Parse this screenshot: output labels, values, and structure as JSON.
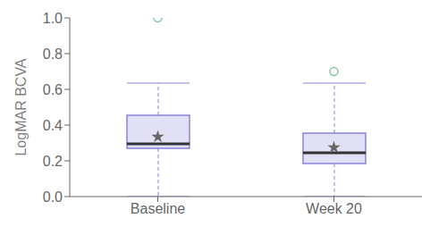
{
  "chart_data": {
    "type": "box",
    "categories": [
      "Baseline",
      "Week 20"
    ],
    "boxes": [
      {
        "q1": 0.27,
        "median": 0.295,
        "q3": 0.455,
        "whisker_low": 0.0,
        "whisker_high": 0.635,
        "mean": 0.335,
        "outliers": [
          1.0
        ]
      },
      {
        "q1": 0.185,
        "median": 0.245,
        "q3": 0.355,
        "whisker_low": 0.0,
        "whisker_high": 0.635,
        "mean": 0.275,
        "outliers": [
          0.7
        ]
      }
    ],
    "ylabel": "LogMAR BCVA",
    "ylim": [
      0,
      1
    ],
    "yticks": [
      {
        "value": 0,
        "label": "0.0"
      },
      0.2,
      0.4,
      0.6,
      0.8,
      {
        "value": 1,
        "label": "1.0"
      }
    ],
    "grid": false
  }
}
